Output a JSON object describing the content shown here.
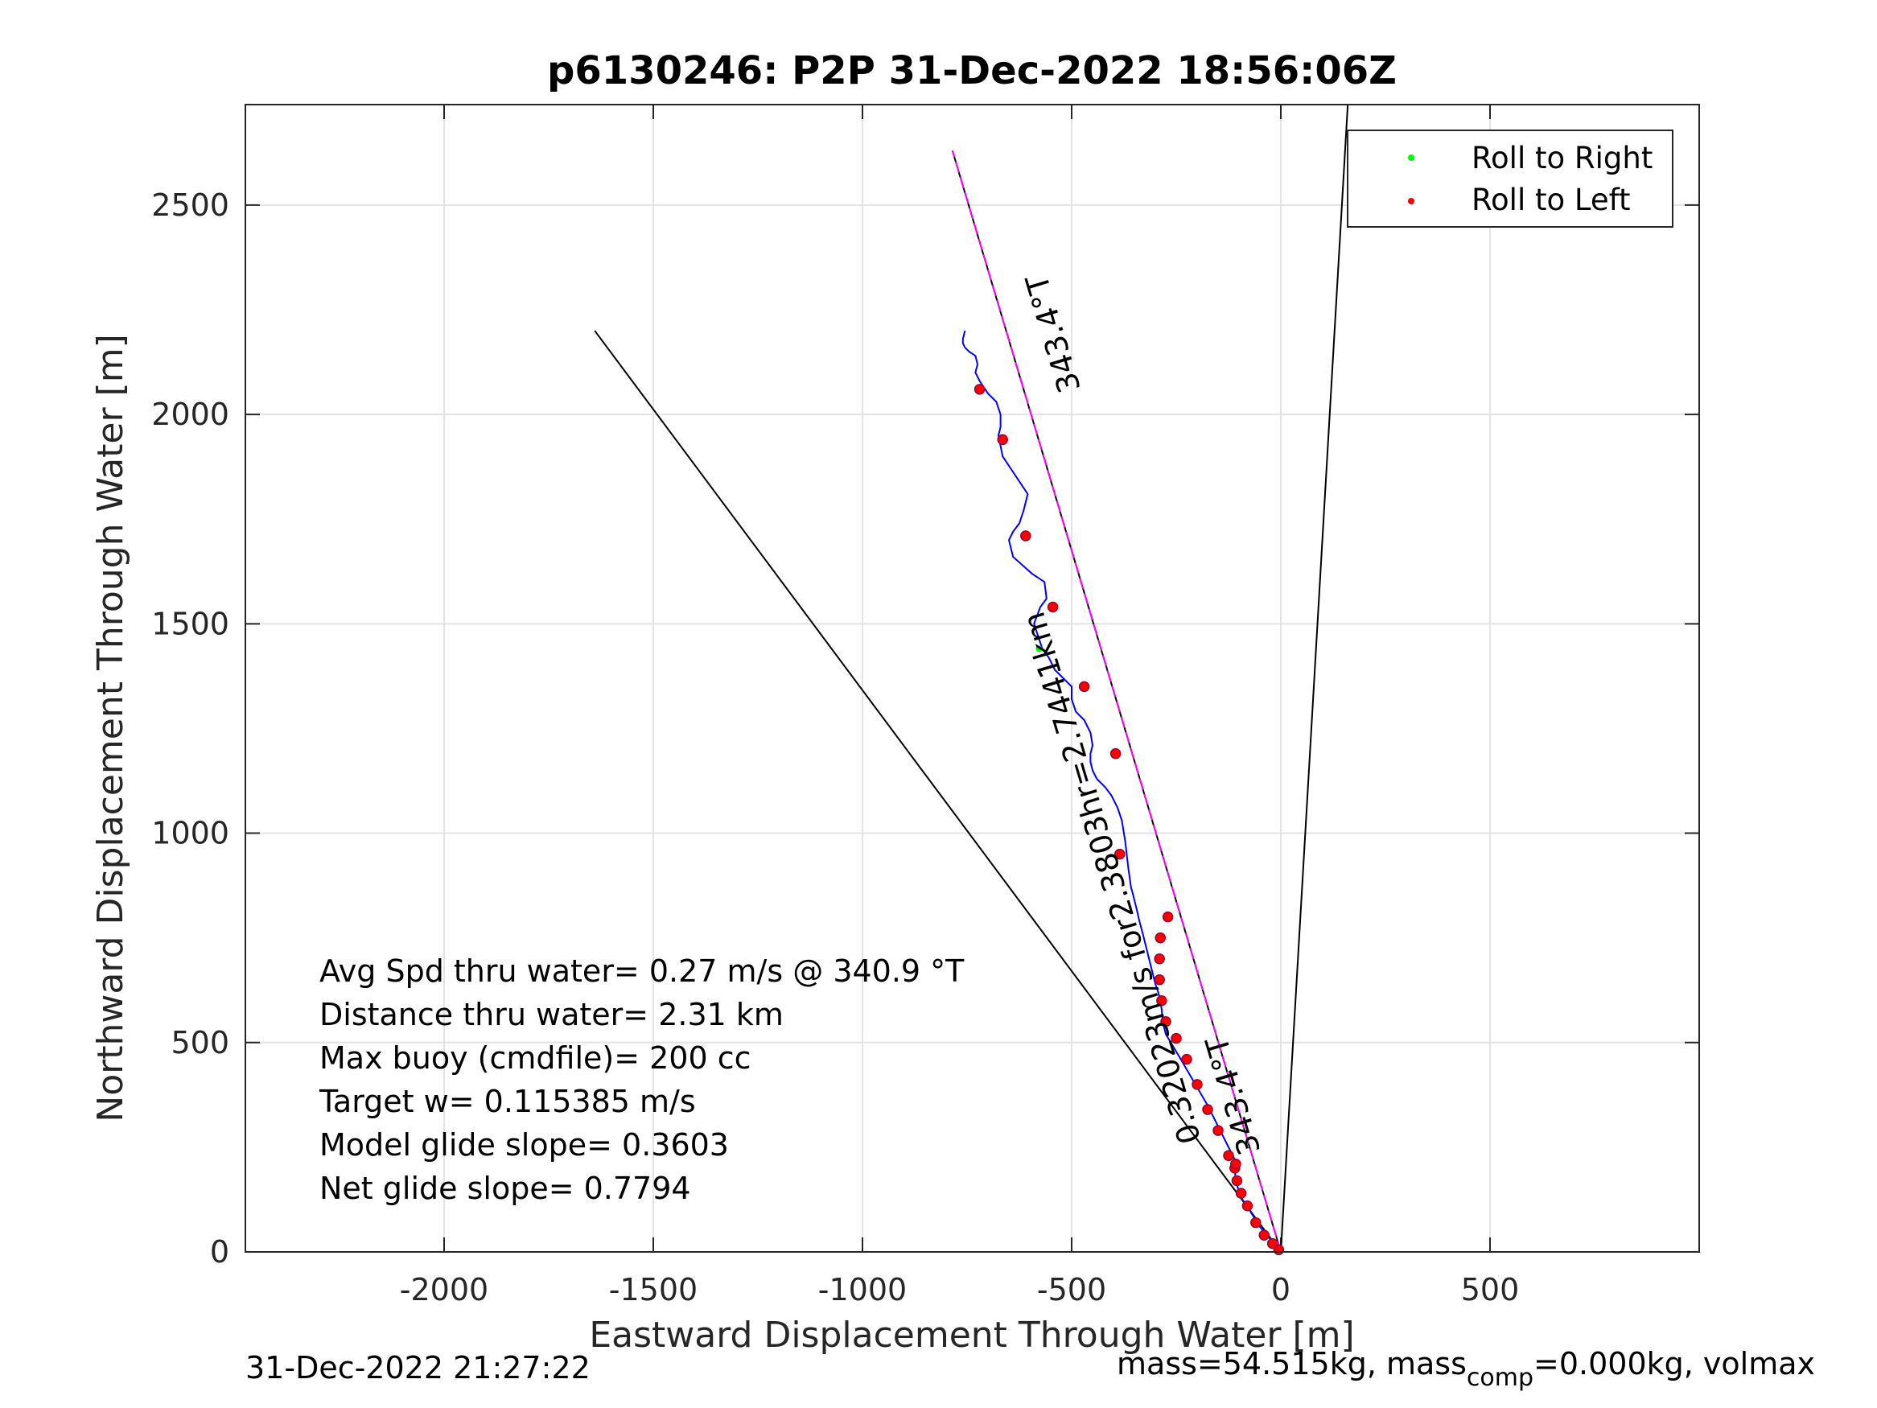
{
  "chart_data": {
    "type": "line",
    "title": "p6130246: P2P 31-Dec-2022 18:56:06Z",
    "xlabel": "Eastward Displacement Through Water [m]",
    "ylabel": "Northward Displacement Through Water [m]",
    "xlim": [
      -2475,
      1000
    ],
    "ylim": [
      0,
      2740
    ],
    "xticks": [
      -2000,
      -1500,
      -1000,
      -500,
      0,
      500
    ],
    "yticks": [
      0,
      500,
      1000,
      1500,
      2000,
      2500
    ],
    "xtick_labels": [
      "-2000",
      "-1500",
      "-1000",
      "-500",
      "0",
      "500"
    ],
    "ytick_labels": [
      "0",
      "500",
      "1000",
      "1500",
      "2000",
      "2500"
    ],
    "grid": true,
    "legend_position": "top-right",
    "legend": [
      {
        "label": "Roll to Right",
        "color": "#00ff00"
      },
      {
        "label": "Roll to Left",
        "color": "#ff0000"
      }
    ],
    "heading_line": {
      "color": "#ff00ff",
      "x": [
        0,
        -785
      ],
      "y": [
        0,
        2630
      ]
    },
    "black_lines": [
      {
        "x": [
          0,
          -785
        ],
        "y": [
          0,
          2630
        ]
      },
      {
        "x": [
          0,
          -1640
        ],
        "y": [
          0,
          2200
        ]
      },
      {
        "x": [
          0,
          160
        ],
        "y": [
          0,
          2740
        ]
      }
    ],
    "track": {
      "color": "#0000ff",
      "x": [
        0,
        -10,
        -25,
        -50,
        -75,
        -95,
        -105,
        -110,
        -108,
        -105,
        -140,
        -175,
        -210,
        -245,
        -275,
        -280,
        -283,
        -285,
        -288,
        -293,
        -300,
        -305,
        -310,
        -315,
        -320,
        -325,
        -330,
        -338,
        -345,
        -355,
        -358,
        -365,
        -372,
        -380,
        -390,
        -405,
        -420,
        -440,
        -450,
        -455,
        -455,
        -450,
        -455,
        -470,
        -490,
        -500,
        -500,
        -520,
        -540,
        -555,
        -570,
        -580,
        -590,
        -575,
        -560,
        -565,
        -595,
        -640,
        -650,
        -640,
        -625,
        -615,
        -605,
        -625,
        -645,
        -665,
        -675,
        -670,
        -670,
        -680,
        -700,
        -720,
        -730,
        -725,
        -730,
        -745,
        -755,
        -760,
        -760,
        -755
      ],
      "y": [
        0,
        10,
        30,
        60,
        100,
        130,
        160,
        190,
        200,
        210,
        280,
        350,
        410,
        470,
        520,
        540,
        560,
        580,
        600,
        620,
        640,
        660,
        680,
        700,
        720,
        740,
        760,
        790,
        820,
        860,
        870,
        920,
        980,
        1030,
        1060,
        1090,
        1110,
        1130,
        1150,
        1170,
        1190,
        1210,
        1240,
        1270,
        1290,
        1320,
        1350,
        1370,
        1390,
        1420,
        1440,
        1470,
        1500,
        1540,
        1560,
        1600,
        1620,
        1660,
        1700,
        1720,
        1740,
        1770,
        1810,
        1840,
        1870,
        1900,
        1950,
        1970,
        2000,
        2030,
        2050,
        2080,
        2100,
        2120,
        2140,
        2150,
        2160,
        2170,
        2180,
        2200
      ]
    },
    "roll_right": {
      "x": [
        -578
      ],
      "y": [
        1440
      ]
    },
    "roll_left": {
      "x": [
        -5,
        -20,
        -40,
        -60,
        -80,
        -95,
        -105,
        -110,
        -108,
        -125,
        -150,
        -175,
        -200,
        -225,
        -250,
        -275,
        -285,
        -290,
        -290,
        -288,
        -270,
        -385,
        -470,
        -395,
        -545,
        -610,
        -665,
        -720
      ],
      "y": [
        5,
        20,
        40,
        70,
        110,
        140,
        170,
        200,
        210,
        230,
        290,
        340,
        400,
        460,
        510,
        550,
        600,
        650,
        700,
        750,
        800,
        950,
        1350,
        1190,
        1540,
        1710,
        1940,
        2060
      ]
    },
    "annotations": [
      "Avg Spd thru water=  0.27 m/s @ 340.9 °T",
      "Distance thru water=  2.31 km",
      "Max buoy (cmdfile)= 200 cc",
      "Target w= 0.115385 m/s",
      "Model glide slope= 0.3603",
      "Net glide slope= 0.7794"
    ],
    "rotated_labels": [
      {
        "text": "343.4°T",
        "x": -520,
        "y": 2200
      },
      {
        "text": "0.32023m/s for2.3803hr=2.7441km",
        "x": -380,
        "y": 900
      },
      {
        "text": "343.4°T",
        "x": -90,
        "y": 380
      }
    ]
  },
  "footer": {
    "date": "31-Dec-2022 21:27:22",
    "mass_prefix": "mass=54.515kg, mass",
    "mass_sub": "comp",
    "mass_suffix": "=0.000kg, volmax"
  }
}
